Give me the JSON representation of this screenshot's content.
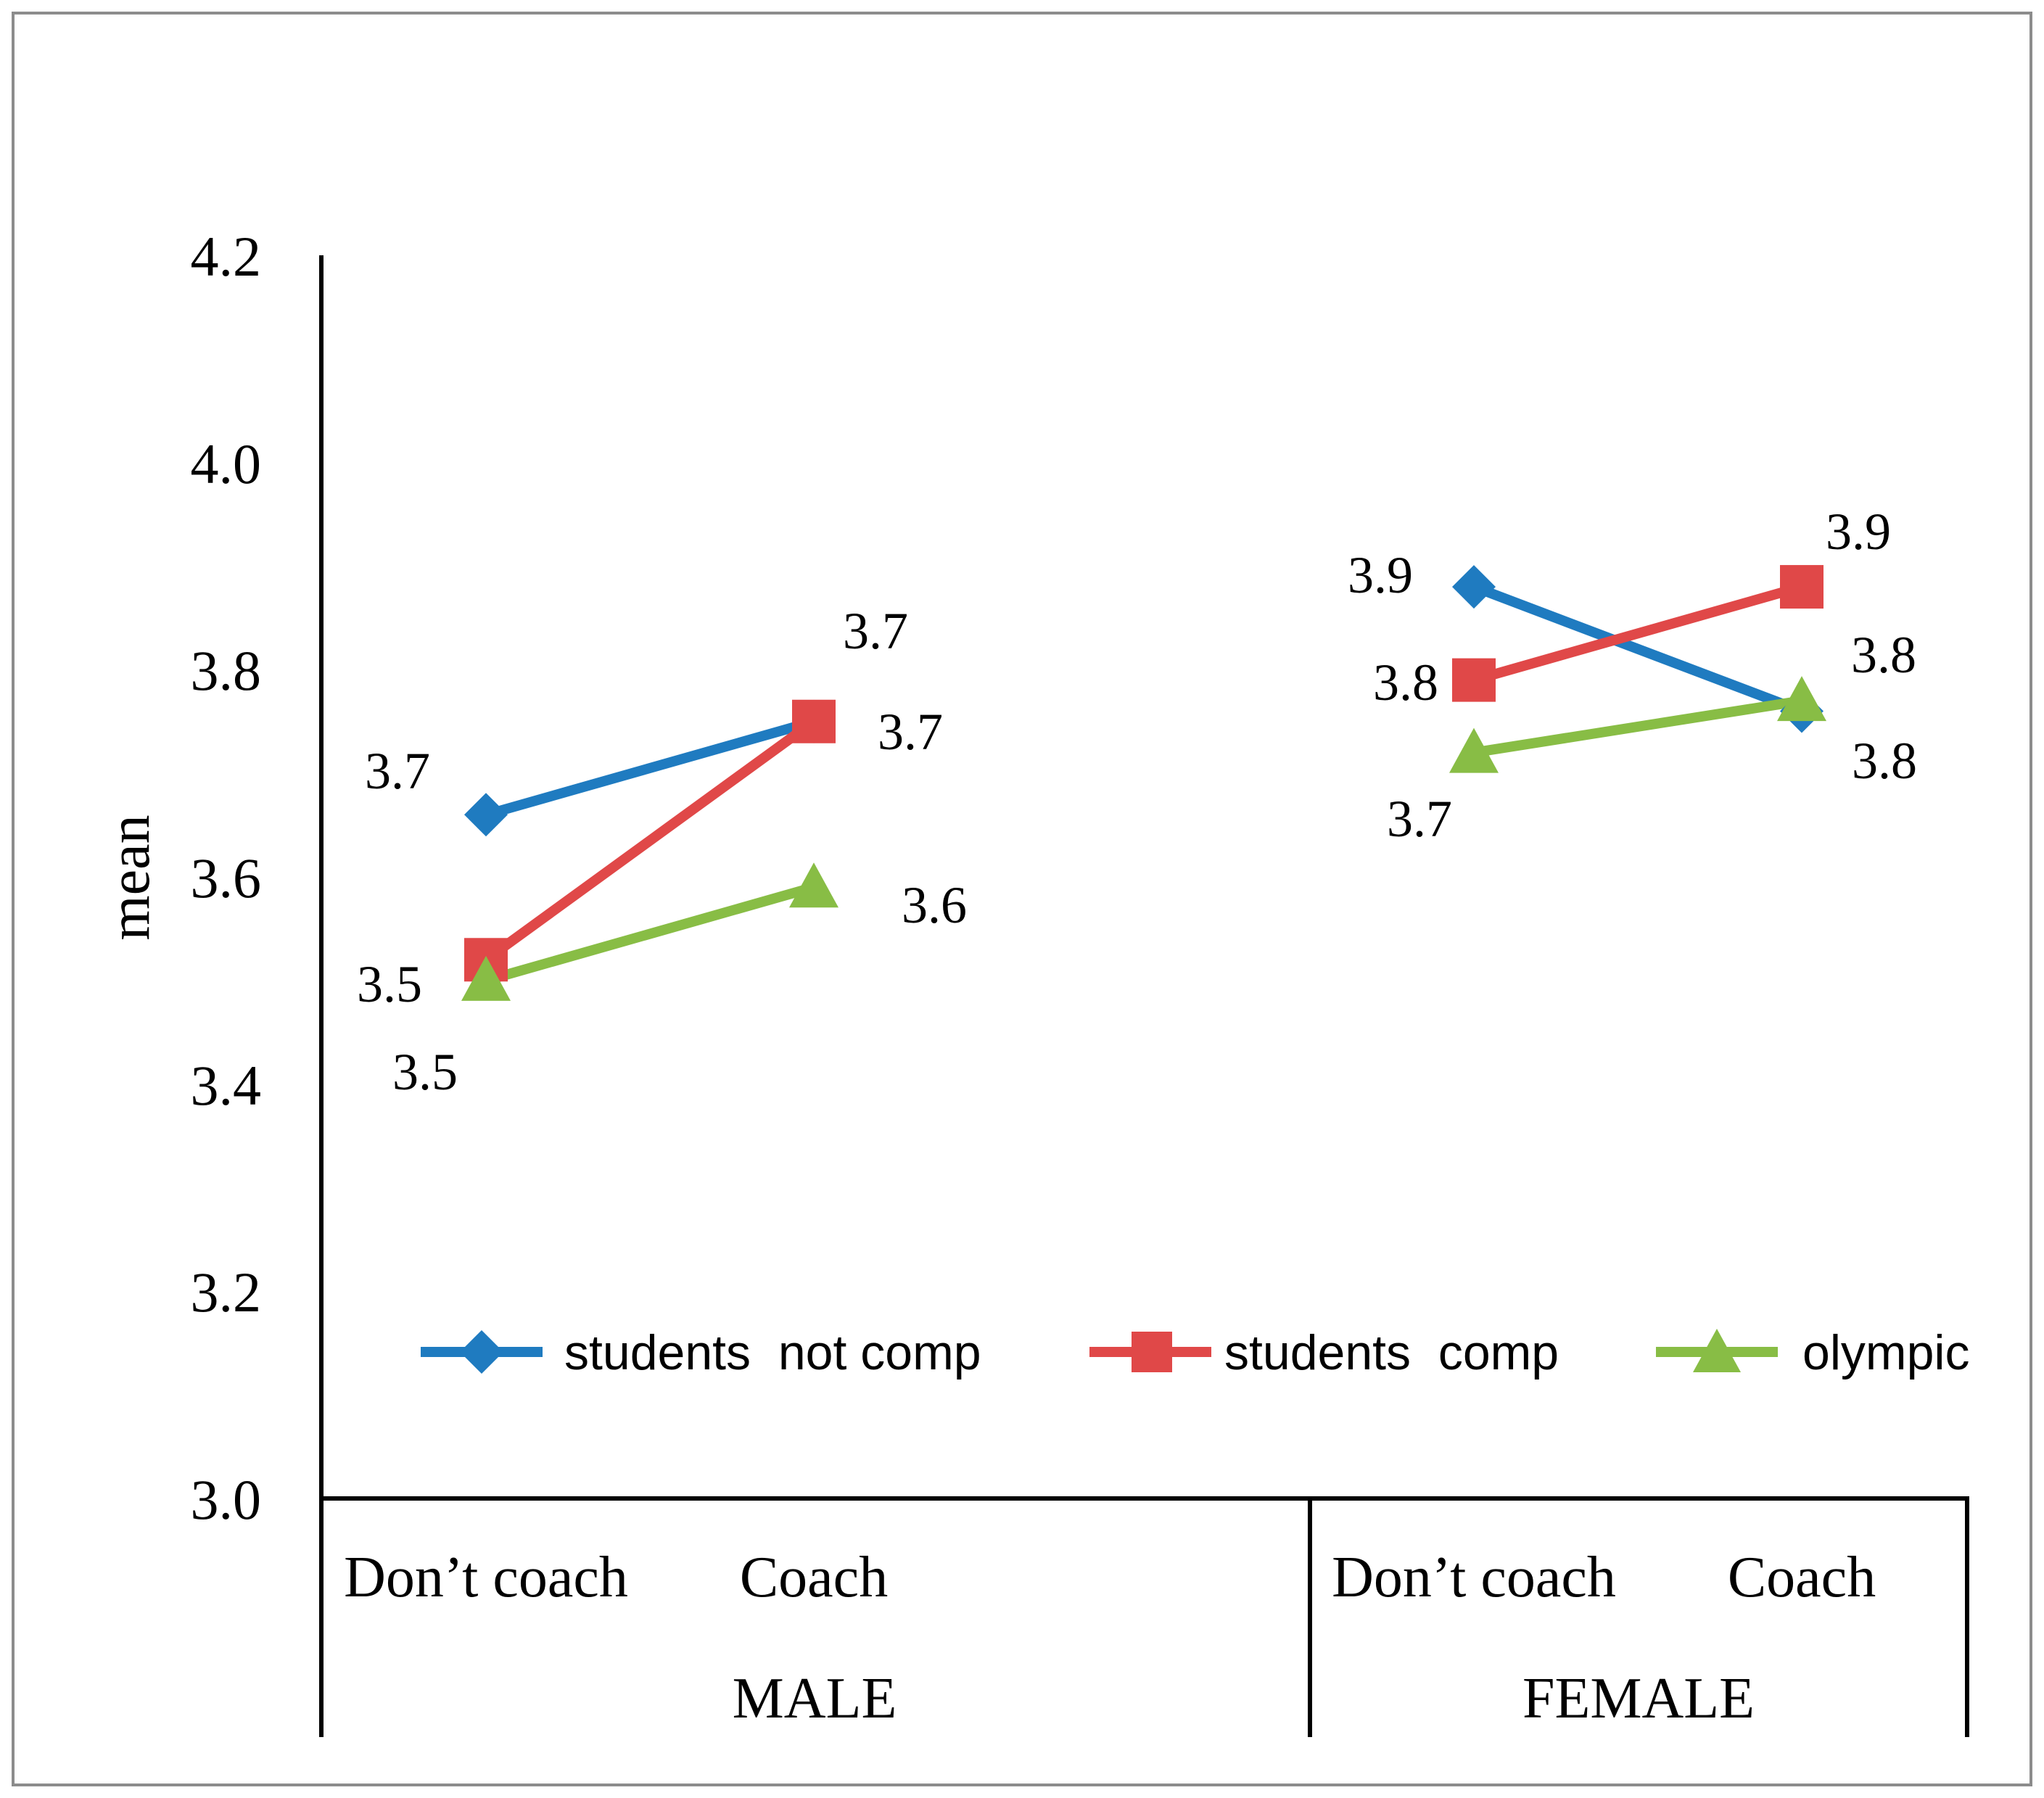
{
  "chart_data": {
    "type": "line",
    "title": "",
    "ylabel": "mean",
    "xlabel": "",
    "ylim": [
      3.0,
      4.2
    ],
    "yticks": [
      "3.0",
      "3.2",
      "3.4",
      "3.6",
      "3.8",
      "4.0",
      "4.2"
    ],
    "groups": [
      {
        "label": "MALE",
        "categories": [
          "Don’t coach",
          "Coach"
        ]
      },
      {
        "label": "FEMALE",
        "categories": [
          "Don’t coach",
          "Coach"
        ]
      }
    ],
    "series": [
      {
        "name": "students  not comp",
        "color": "#1f7bc0",
        "marker": "diamond",
        "segments": [
          [
            3.66,
            3.75
          ],
          [
            3.88,
            3.76
          ]
        ],
        "labels": [
          [
            "3.7",
            "3.7"
          ],
          [
            "3.9",
            "3.8"
          ]
        ]
      },
      {
        "name": "students  comp",
        "color": "#e04848",
        "marker": "square",
        "segments": [
          [
            3.52,
            3.75
          ],
          [
            3.79,
            3.88
          ]
        ],
        "labels": [
          [
            "3.5",
            "3.7"
          ],
          [
            "3.8",
            "3.9"
          ]
        ]
      },
      {
        "name": "olympic",
        "color": "#88bd45",
        "marker": "triangle",
        "segments": [
          [
            3.5,
            3.59
          ],
          [
            3.72,
            3.77
          ]
        ],
        "labels": [
          [
            "3.5",
            "3.6"
          ],
          [
            "3.7",
            "3.8"
          ]
        ]
      }
    ],
    "legend_position": "bottom-inside"
  }
}
